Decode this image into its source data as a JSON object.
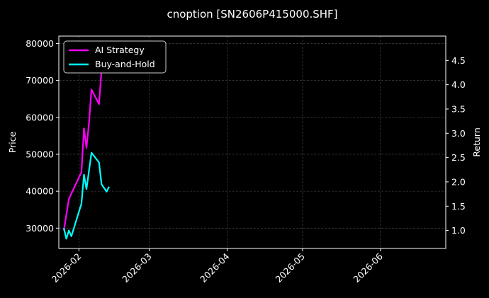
{
  "chart_data": {
    "type": "line",
    "title": "cnoption [SN2606P415000.SHF]",
    "ylabel": "Price",
    "y2label": "Return",
    "xlim": [
      "2026-01-24",
      "2026-06-27"
    ],
    "ylim": [
      24500,
      82000
    ],
    "y2lim": [
      0.63,
      5.0
    ],
    "x_ticks": [
      "2026-02",
      "2026-03",
      "2026-04",
      "2026-05",
      "2026-06"
    ],
    "y_ticks": [
      30000,
      40000,
      50000,
      60000,
      70000,
      80000
    ],
    "y2_ticks": [
      1.0,
      1.5,
      2.0,
      2.5,
      3.0,
      3.5,
      4.0,
      4.5
    ],
    "grid": true,
    "legend_position": "top-left",
    "series": [
      {
        "name": "AI Strategy",
        "axis": "right",
        "color": "#ff00ff",
        "x": [
          "2026-01-26",
          "2026-01-28",
          "2026-02-02",
          "2026-02-03",
          "2026-02-04",
          "2026-02-05",
          "2026-02-06",
          "2026-02-09",
          "2026-02-10",
          "2026-02-11",
          "2026-02-12"
        ],
        "y": [
          1.0,
          1.65,
          2.2,
          3.1,
          2.7,
          3.2,
          3.9,
          3.6,
          4.3,
          4.55,
          4.9
        ]
      },
      {
        "name": "Buy-and-Hold",
        "axis": "right",
        "color": "#00ffff",
        "x": [
          "2026-01-26",
          "2026-01-27",
          "2026-01-28",
          "2026-01-29",
          "2026-02-02",
          "2026-02-03",
          "2026-02-04",
          "2026-02-06",
          "2026-02-09",
          "2026-02-10",
          "2026-02-12",
          "2026-02-13"
        ],
        "y": [
          1.05,
          0.83,
          1.0,
          0.88,
          1.55,
          2.15,
          1.85,
          2.6,
          2.4,
          1.95,
          1.8,
          1.9
        ]
      }
    ]
  }
}
